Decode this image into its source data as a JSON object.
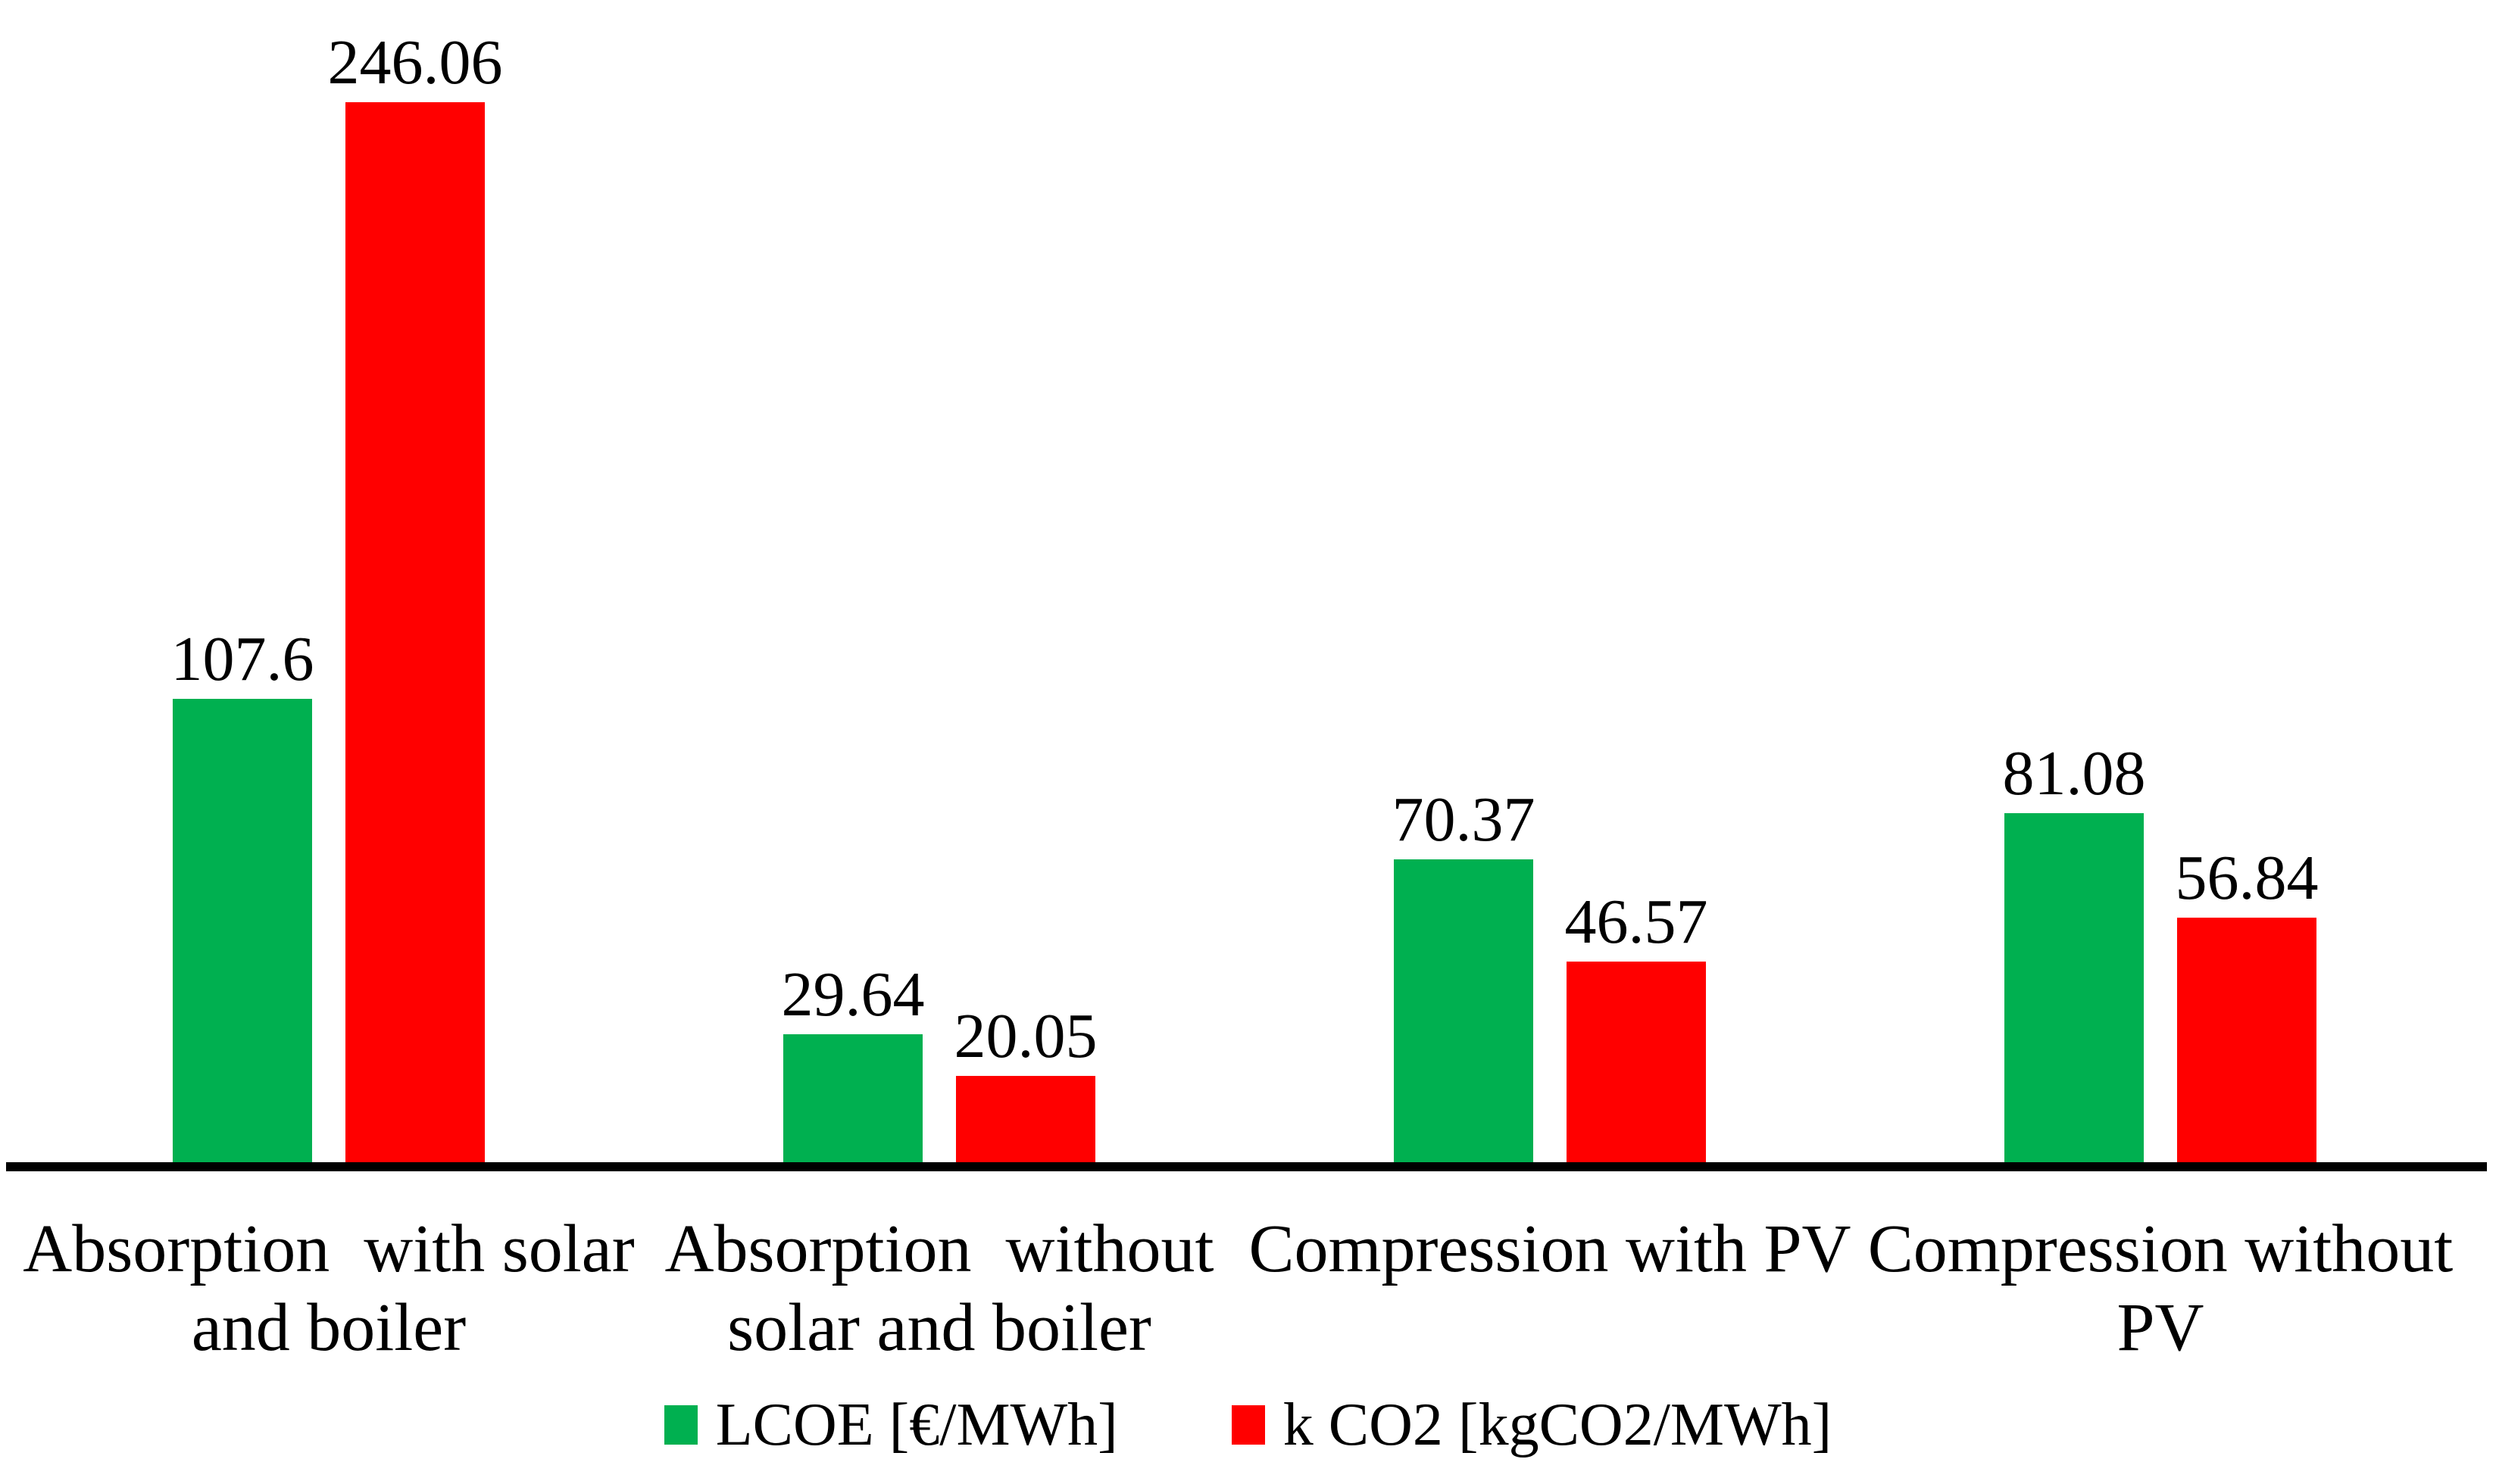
{
  "chart_data": {
    "type": "bar",
    "title": "",
    "xlabel": "",
    "ylabel": "",
    "ylim": [
      0,
      260
    ],
    "grid": false,
    "legend_position": "bottom",
    "background_color": "#FFFFFF",
    "axis_color": "#000000",
    "text_color": "#000000",
    "categories": [
      "Absorption  with solar\nand boiler",
      "Absorption  without\nsolar and boiler",
      "Compression with PV",
      "Compression without\nPV"
    ],
    "series": [
      {
        "name": "LCOE [€/MWh]",
        "color": "#00B050",
        "values": [
          107.6,
          29.64,
          70.37,
          81.08
        ],
        "value_labels": [
          "107.6",
          "29.64",
          "70.37",
          "81.08"
        ]
      },
      {
        "name": "k CO2 [kgCO2/MWh]",
        "color": "#FF0000",
        "values": [
          246.06,
          20.05,
          46.57,
          56.84
        ],
        "value_labels": [
          "246.06",
          "20.05",
          "46.57",
          "56.84"
        ]
      }
    ]
  }
}
